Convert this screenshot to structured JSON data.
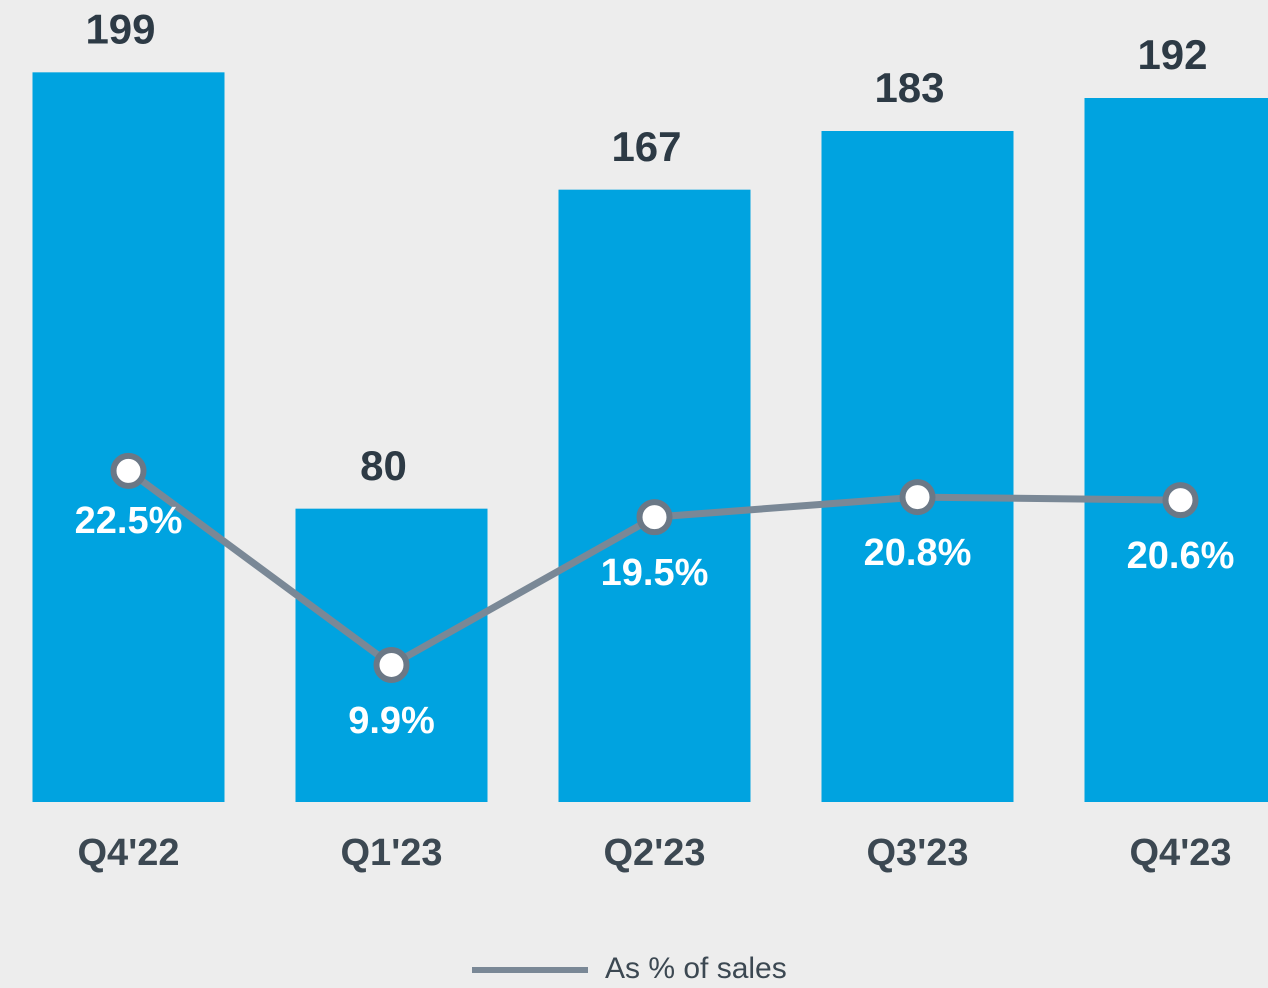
{
  "chart_data": {
    "type": "bar",
    "categories": [
      "Q4'22",
      "Q1'23",
      "Q2'23",
      "Q3'23",
      "Q4'23"
    ],
    "series": [
      {
        "color": "#00a3e0",
        "values": [
          199,
          80,
          167,
          183,
          192
        ]
      },
      {
        "name": "As % of sales",
        "type": "line",
        "axis": "y2",
        "color": "#7a8896",
        "values": [
          22.5,
          9.9,
          19.5,
          20.8,
          20.6
        ],
        "value_labels": [
          "22.5%",
          "9.9%",
          "19.5%",
          "20.8%",
          "20.6%"
        ]
      }
    ],
    "ylim": [
      0,
      210
    ],
    "y2lim": [
      1,
      51
    ]
  }
}
